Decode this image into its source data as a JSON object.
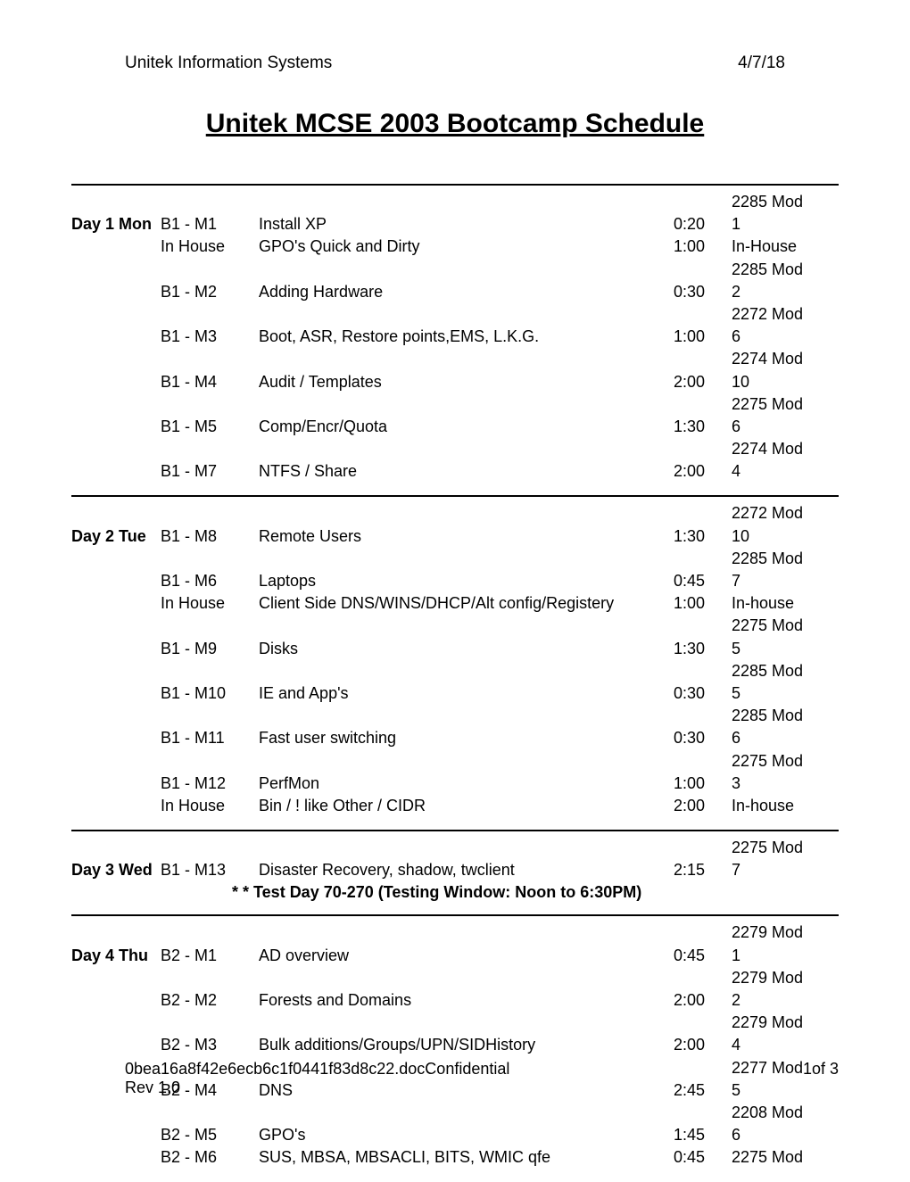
{
  "header": {
    "left": "Unitek Information Systems",
    "right": "4/7/18"
  },
  "title": "Unitek MCSE 2003 Bootcamp Schedule",
  "days": [
    {
      "label": "Day 1 Mon",
      "rows": [
        {
          "module": "B1 - M1",
          "desc": "Install XP",
          "time": "0:20",
          "note1": "",
          "note2": "2285 Mod 1"
        },
        {
          "module": "In House",
          "desc": "GPO's Quick and Dirty",
          "time": "1:00",
          "note1": "",
          "note2": "In-House"
        },
        {
          "module": "B1 - M2",
          "desc": "Adding Hardware",
          "time": "0:30",
          "note1": "",
          "note2": "2285 Mod 2"
        },
        {
          "module": "B1 - M3",
          "desc": "Boot, ASR, Restore points,EMS, L.K.G.",
          "time": "1:00",
          "note1": "",
          "note2": "2272 Mod 6"
        },
        {
          "module": "B1 - M4",
          "desc": "Audit / Templates",
          "time": "2:00",
          "note1": "",
          "note2": "2274 Mod 10"
        },
        {
          "module": "B1 - M5",
          "desc": "Comp/Encr/Quota",
          "time": "1:30",
          "note1": "",
          "note2": "2275 Mod 6"
        },
        {
          "module": "B1 - M7",
          "desc": "NTFS / Share",
          "time": "2:00",
          "note1": "",
          "note2": "2274 Mod 4"
        }
      ]
    },
    {
      "label": "Day 2 Tue",
      "rows": [
        {
          "module": "B1  - M8",
          "desc": "Remote Users",
          "time": "1:30",
          "note1": "",
          "note2": "2272 Mod 10"
        },
        {
          "module": "B1 - M6",
          "desc": "Laptops",
          "time": "0:45",
          "note1": "",
          "note2": "2285 Mod 7"
        },
        {
          "module": "In House",
          "desc": "Client Side DNS/WINS/DHCP/Alt config/Registery",
          "time": "1:00",
          "note1": "",
          "note2": "In-house"
        },
        {
          "module": "B1 - M9",
          "desc": "Disks",
          "time": "1:30",
          "note1": "",
          "note2": "2275 Mod 5"
        },
        {
          "module": "B1 - M10",
          "desc": "IE and App's",
          "time": "0:30",
          "note1": "",
          "note2": "2285 Mod 5"
        },
        {
          "module": "B1 - M11",
          "desc": "Fast user switching",
          "time": "0:30",
          "note1": "",
          "note2": "2285 Mod 6"
        },
        {
          "module": "B1 - M12",
          "desc": "PerfMon",
          "time": "1:00",
          "note1": "",
          "note2": "2275 Mod 3"
        },
        {
          "module": "In House",
          "desc": "Bin / ! like Other / CIDR",
          "time": "2:00",
          "note1": "",
          "note2": "In-house"
        }
      ]
    },
    {
      "label": "Day 3 Wed",
      "rows": [
        {
          "module": "B1 - M13",
          "desc": "Disaster Recovery, shadow, twclient",
          "time": "2:15",
          "note1": "",
          "note2": "2275 Mod 7"
        }
      ],
      "note": "* * Test Day 70-270  (Testing Window: Noon to 6:30PM)"
    },
    {
      "label": "Day 4 Thu",
      "rows": [
        {
          "module": "B2 - M1",
          "desc": "AD overview",
          "time": "0:45",
          "note1": "",
          "note2": "2279 Mod 1"
        },
        {
          "module": "B2 - M2",
          "desc": "Forests and Domains",
          "time": "2:00",
          "note1": "",
          "note2": "2279 Mod 2"
        },
        {
          "module": "B2 - M3",
          "desc": "Bulk additions/Groups/UPN/SIDHistory",
          "time": "2:00",
          "note1": "",
          "note2": "2279 Mod 4"
        },
        {
          "module": "B2 - M4",
          "desc": "DNS",
          "time": "2:45",
          "note1": "",
          "note2": "2277 Mod 5"
        },
        {
          "module": "B2 - M5",
          "desc": "GPO's",
          "time": "1:45",
          "note1": "",
          "note2": "2208 Mod 6"
        },
        {
          "module": "B2 - M6",
          "desc": "SUS, MBSA, MBSACLI, BITS, WMIC qfe",
          "time": "0:45",
          "note1": "",
          "note2": "2275 Mod"
        }
      ]
    }
  ],
  "footer": {
    "left": "0bea16a8f42e6ecb6c1f0441f83d8c22.docConfidential",
    "right": "1of 3",
    "rev": "Rev 1.0"
  }
}
